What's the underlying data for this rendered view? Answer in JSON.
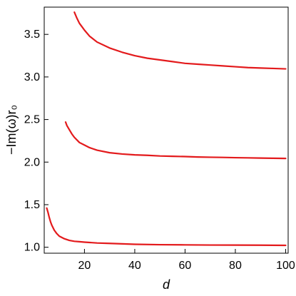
{
  "chart_data": {
    "type": "line",
    "title": "",
    "xlabel": "d",
    "ylabel": "−Im(ω)r₀",
    "xlim": [
      4,
      101
    ],
    "ylim": [
      0.93,
      3.82
    ],
    "grid": false,
    "x_ticks": [
      20,
      40,
      60,
      80,
      100
    ],
    "y_ticks": [
      1.0,
      1.5,
      2.0,
      2.5,
      3.0,
      3.5
    ],
    "x_tick_labels": [
      "20",
      "40",
      "60",
      "80",
      "100"
    ],
    "y_tick_labels": [
      "1.0",
      "1.5",
      "2.0",
      "2.5",
      "3.0",
      "3.5"
    ],
    "series_color": "#e31a1c",
    "series": [
      {
        "x": [
          16.0,
          17.0,
          18.0,
          19.0,
          20.0,
          22.0,
          25.0,
          30.0,
          35.0,
          40.0,
          45.0,
          50.0,
          55.0,
          60.0,
          65.0,
          70.0,
          75.0,
          80.0,
          85.0,
          90.0,
          95.0,
          100.0
        ],
        "y": [
          3.76,
          3.69,
          3.63,
          3.59,
          3.55,
          3.48,
          3.41,
          3.34,
          3.29,
          3.25,
          3.22,
          3.2,
          3.18,
          3.16,
          3.15,
          3.14,
          3.13,
          3.12,
          3.11,
          3.105,
          3.1,
          3.095
        ]
      },
      {
        "x": [
          12.5,
          13.0,
          14.0,
          15.0,
          16.0,
          18.0,
          20.0,
          22.0,
          25.0,
          30.0,
          35.0,
          40.0,
          45.0,
          50.0,
          55.0,
          60.0,
          65.0,
          70.0,
          75.0,
          80.0,
          85.0,
          90.0,
          95.0,
          100.0
        ],
        "y": [
          2.47,
          2.43,
          2.38,
          2.33,
          2.29,
          2.23,
          2.2,
          2.17,
          2.14,
          2.11,
          2.095,
          2.085,
          2.08,
          2.072,
          2.068,
          2.065,
          2.06,
          2.057,
          2.055,
          2.052,
          2.05,
          2.047,
          2.045,
          2.043
        ]
      },
      {
        "x": [
          5.0,
          5.5,
          6.0,
          6.5,
          7.0,
          8.0,
          9.0,
          10.0,
          12.0,
          14.0,
          16.0,
          18.0,
          20.0,
          25.0,
          30.0,
          35.0,
          40.0,
          50.0,
          60.0,
          70.0,
          80.0,
          90.0,
          100.0
        ],
        "y": [
          1.46,
          1.41,
          1.35,
          1.3,
          1.26,
          1.2,
          1.16,
          1.13,
          1.1,
          1.08,
          1.07,
          1.065,
          1.06,
          1.05,
          1.045,
          1.04,
          1.035,
          1.03,
          1.028,
          1.026,
          1.025,
          1.024,
          1.022
        ]
      }
    ]
  }
}
